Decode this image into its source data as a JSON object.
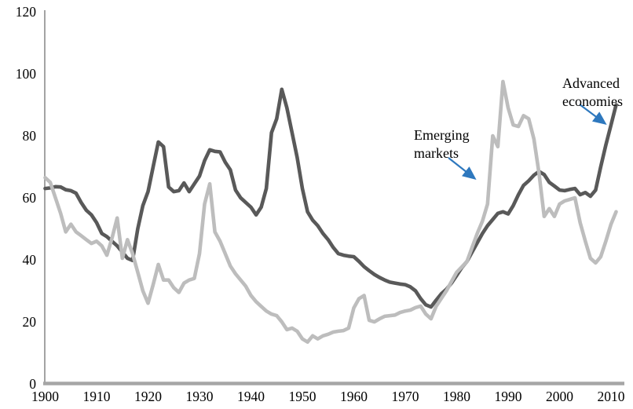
{
  "chart_data": {
    "type": "line",
    "title": "",
    "xlabel": "",
    "ylabel": "",
    "grid": false,
    "legend_position": "none (series labeled by on-chart annotations with arrows)",
    "background_color": "#ffffff",
    "axis_color": "#a6a6a6",
    "y_axis": {
      "ticks": [
        0,
        20,
        40,
        60,
        80,
        100,
        120
      ],
      "range": [
        0,
        120
      ]
    },
    "x_axis": {
      "ticks": [
        1900,
        1910,
        1920,
        1930,
        1940,
        1950,
        1960,
        1970,
        1980,
        1990,
        2000,
        2010
      ],
      "range": [
        1900,
        2011
      ]
    },
    "series": [
      {
        "id": "advanced-economies",
        "name": "Advanced economies",
        "color": "#595959",
        "x_start": 1900,
        "x_step": 1,
        "values": [
          63,
          63.2,
          63.6,
          63.5,
          62.6,
          62.3,
          61.5,
          58.5,
          56,
          54.5,
          52,
          48.5,
          47.5,
          46,
          44.5,
          42.5,
          40.5,
          39.8,
          50,
          57.5,
          62,
          70,
          78,
          76.5,
          63.5,
          62,
          62.3,
          64.8,
          62,
          64.5,
          67,
          72,
          75.5,
          75,
          74.8,
          71.5,
          69,
          62.5,
          60,
          58.5,
          57,
          54.5,
          57,
          63,
          81,
          85.5,
          95,
          89,
          81,
          73,
          63,
          55.5,
          52.8,
          51,
          48.5,
          46.5,
          44,
          42,
          41.5,
          41.2,
          41,
          39.5,
          37.8,
          36.5,
          35.3,
          34.3,
          33.5,
          32.8,
          32.5,
          32.2,
          32,
          31.3,
          30,
          27.5,
          25.5,
          24.8,
          27,
          29,
          30.5,
          32.5,
          35,
          37.5,
          39.5,
          42.5,
          45.5,
          48.5,
          51,
          53,
          55,
          55.5,
          54.8,
          57.5,
          61,
          64,
          65.5,
          67.3,
          68.5,
          67.5,
          65,
          63.8,
          62.5,
          62.3,
          62.7,
          63,
          61,
          61.7,
          60.5,
          62.5,
          70,
          77,
          83.5,
          90
        ]
      },
      {
        "id": "emerging-markets",
        "name": "Emerging markets",
        "color": "#bdbdbd",
        "x_start": 1900,
        "x_step": 1,
        "values": [
          66.5,
          65,
          60,
          55,
          49,
          51.5,
          49,
          47.8,
          46.5,
          45.3,
          46,
          44.5,
          41.5,
          47,
          53.5,
          40.5,
          46.5,
          42,
          36,
          30,
          26,
          32,
          38.5,
          33.5,
          33.5,
          31,
          29.5,
          32.5,
          33.5,
          34,
          42,
          58,
          64.5,
          49,
          46,
          42,
          38,
          35.5,
          33.5,
          31.5,
          28.5,
          26.5,
          25,
          23.5,
          22.5,
          22,
          20,
          17.5,
          18,
          17,
          14.5,
          13.5,
          15.5,
          14.5,
          15.5,
          16,
          16.7,
          17,
          17.2,
          18,
          24.5,
          27.5,
          28.5,
          20.5,
          20,
          21,
          21.8,
          22,
          22.2,
          23,
          23.5,
          23.8,
          24.6,
          25.1,
          22.5,
          21,
          25,
          27.5,
          30,
          33,
          36,
          37.7,
          39.5,
          44,
          48.5,
          52.5,
          58,
          80,
          76.5,
          97.5,
          89,
          83.5,
          83,
          86.5,
          85.5,
          79,
          68,
          54,
          56.5,
          54,
          58,
          59,
          59.5,
          60,
          52,
          46,
          40.5,
          39,
          41,
          46,
          51.5,
          55.5
        ]
      }
    ],
    "annotations": [
      {
        "text": "Emerging markets",
        "target_series": "Emerging markets",
        "arrow_color": "#2e78be"
      },
      {
        "text": "Advanced economies",
        "target_series": "Advanced economies",
        "arrow_color": "#2e78be"
      }
    ]
  }
}
